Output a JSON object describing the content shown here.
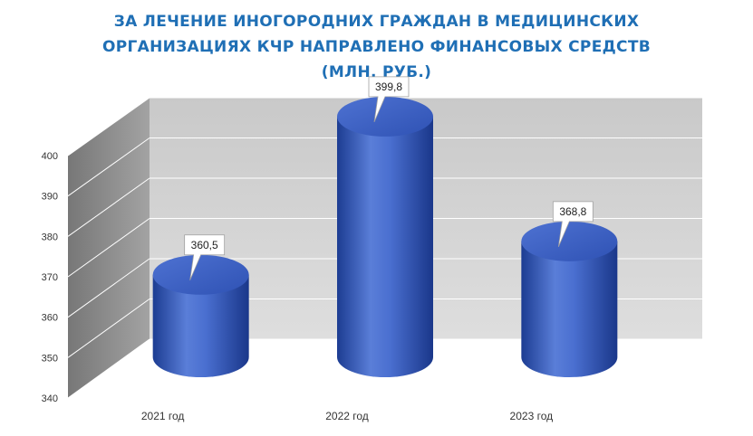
{
  "chart_data": {
    "type": "bar",
    "title_lines": [
      "ЗА ЛЕЧЕНИЕ ИНОГОРОДНИХ ГРАЖДАН В МЕДИЦИНСКИХ",
      "ОРГАНИЗАЦИЯХ КЧР НАПРАВЛЕНО ФИНАНСОВЫХ СРЕДСТВ",
      "(МЛН. РУБ.)"
    ],
    "categories": [
      "2021 год",
      "2022 год",
      "2023 год"
    ],
    "values": [
      360.5,
      399.8,
      368.8
    ],
    "value_labels": [
      "360,5",
      "399,8",
      "368,8"
    ],
    "ylim": [
      340,
      400
    ],
    "yticks": [
      340,
      350,
      360,
      370,
      380,
      390,
      400
    ],
    "grid": true,
    "style": "3d-cylinder",
    "colors": {
      "title": "#1f6fb5",
      "bar": "#3b63c4",
      "bar_dark": "#1f3f95",
      "bar_light": "#6e8fe0",
      "wall": "#d2d2d2",
      "side_wall": "#8e8e8e"
    }
  }
}
